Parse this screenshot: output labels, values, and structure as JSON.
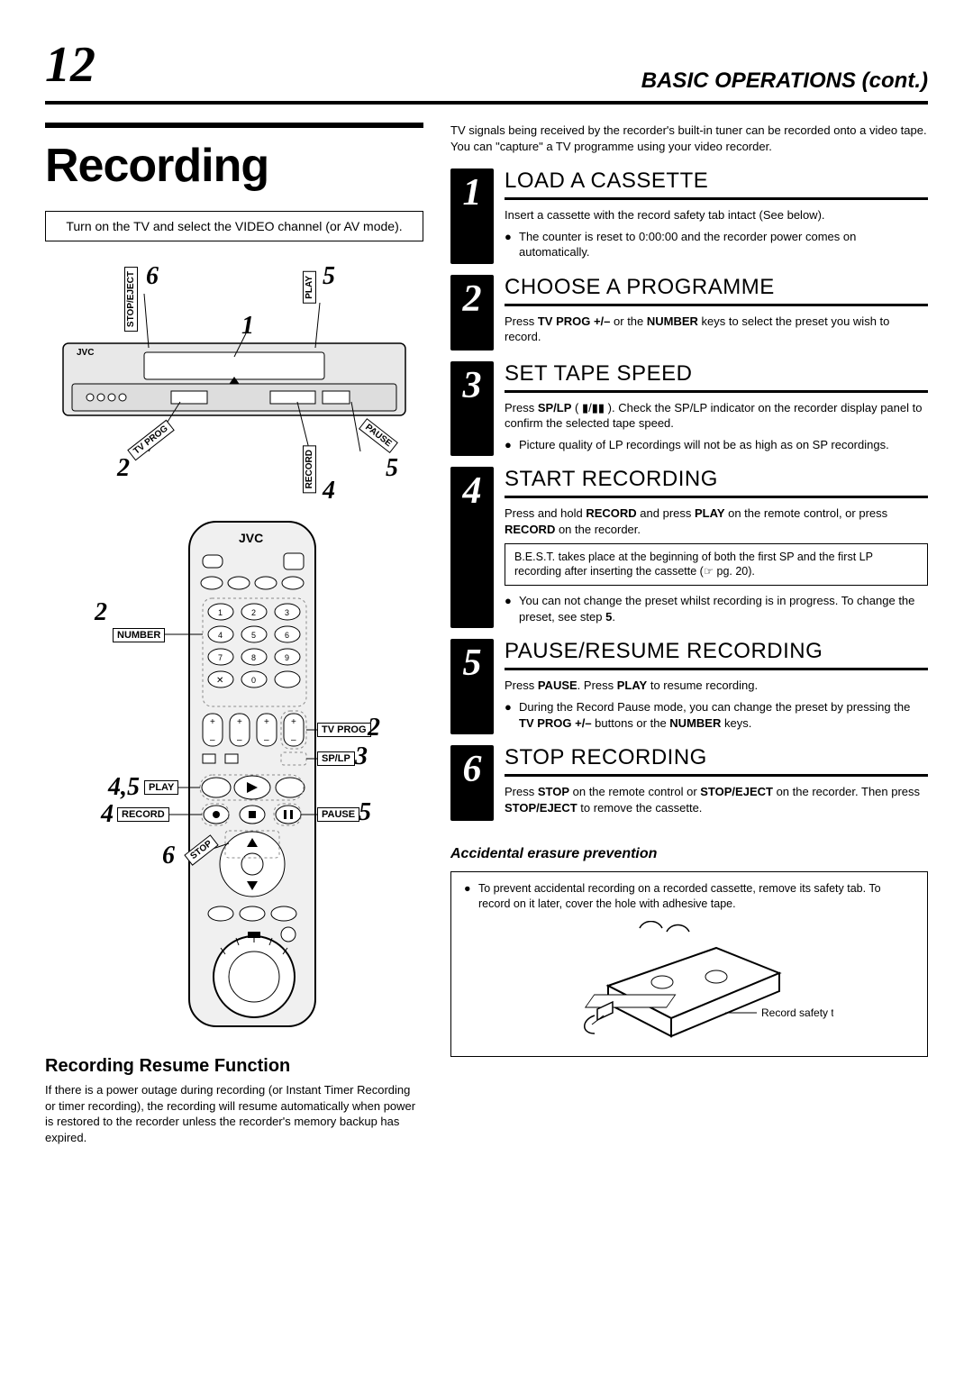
{
  "page_number": "12",
  "section_header": "BASIC OPERATIONS (cont.)",
  "main_title": "Recording",
  "intro_box": "Turn on the TV and select the VIDEO channel (or AV mode).",
  "vcr_labels": {
    "stop_eject": "STOP/EJECT",
    "play": "PLAY",
    "tv_prog": "TV PROG",
    "pause": "PAUSE",
    "record": "RECORD",
    "brand": "JVC"
  },
  "remote_labels": {
    "brand": "JVC",
    "number": "NUMBER",
    "tv_prog": "TV PROG",
    "sp_lp": "SP/LP",
    "play": "PLAY",
    "pause": "PAUSE",
    "record": "RECORD",
    "stop": "STOP"
  },
  "resume": {
    "title": "Recording Resume Function",
    "text": "If there is a power outage during recording (or Instant Timer Recording or timer recording), the recording will resume automatically when power is restored to the recorder unless the recorder's memory backup has expired."
  },
  "intro_para": "TV signals being received by the recorder's built-in tuner can be recorded onto a video tape. You can \"capture\" a TV programme using your video recorder.",
  "steps": [
    {
      "num": "1",
      "title": "LOAD A CASSETTE",
      "text": "Insert a cassette with the record safety tab intact (See below).",
      "bullets": [
        "The counter is reset to 0:00:00 and the recorder power comes on automatically."
      ]
    },
    {
      "num": "2",
      "title": "CHOOSE A PROGRAMME",
      "text_html": "Press <b>TV PROG +/–</b> or the <b>NUMBER</b> keys to select the preset you wish to record."
    },
    {
      "num": "3",
      "title": "SET TAPE SPEED",
      "text_html": "Press <b>SP/LP</b> ( ▮/▮▮ ). Check the SP/LP indicator on the recorder display panel to confirm the selected tape speed.",
      "bullets": [
        "Picture quality of LP recordings will not be as high as on SP recordings."
      ]
    },
    {
      "num": "4",
      "title": "START RECORDING",
      "text_html": "Press and hold <b>RECORD</b> and press <b>PLAY</b> on the remote control, or press <b>RECORD</b> on the recorder.",
      "note": "B.E.S.T. takes place at the beginning of both the first SP and the first LP recording after inserting the cassette (☞ pg. 20).",
      "bullets_html": [
        "You can not change the preset whilst recording is in progress. To change the preset, see step <b>5</b>."
      ]
    },
    {
      "num": "5",
      "title": "PAUSE/RESUME RECORDING",
      "text_html": "Press <b>PAUSE</b>. Press <b>PLAY</b> to resume recording.",
      "bullets_html": [
        "During the Record Pause mode, you can change the preset by pressing the <b>TV PROG +/–</b> buttons or the <b>NUMBER</b> keys."
      ]
    },
    {
      "num": "6",
      "title": "STOP RECORDING",
      "text_html": "Press <b>STOP</b> on the remote control or <b>STOP/EJECT</b> on the recorder. Then press <b>STOP/EJECT</b> to remove the cassette."
    }
  ],
  "prevention": {
    "title": "Accidental erasure prevention",
    "text": "To prevent accidental recording on a recorded cassette, remove its safety tab. To record on it later, cover the hole with adhesive tape.",
    "label": "Record safety tab"
  },
  "colors": {
    "text": "#000000",
    "bg": "#ffffff",
    "step_num_bg": "#000000"
  }
}
